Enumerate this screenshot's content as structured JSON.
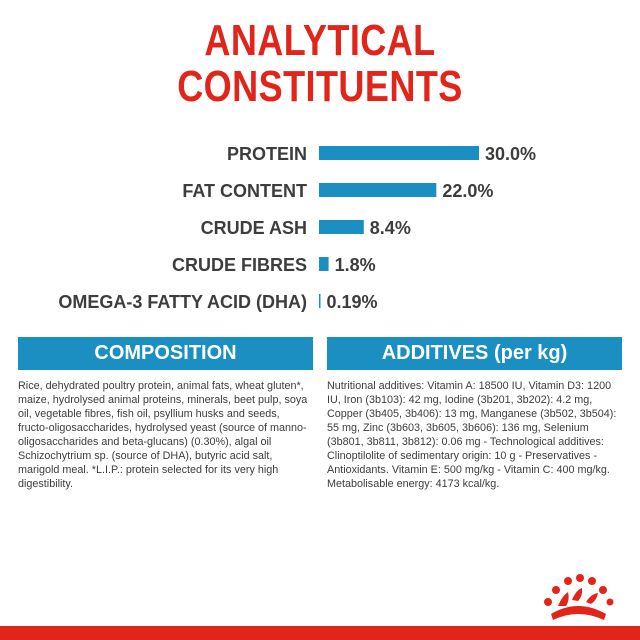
{
  "title_line1": "ANALYTICAL",
  "title_line2": "CONSTITUENTS",
  "chart_data": {
    "type": "bar",
    "orientation": "horizontal",
    "categories": [
      "PROTEIN",
      "FAT CONTENT",
      "CRUDE ASH",
      "CRUDE FIBRES",
      "OMEGA-3 FATTY ACID (DHA)"
    ],
    "values": [
      30.0,
      22.0,
      8.4,
      1.8,
      0.19
    ],
    "value_labels": [
      "30.0%",
      "22.0%",
      "8.4%",
      "1.8%",
      "0.19%"
    ],
    "bar_color": "#1b8fc1",
    "grid": false,
    "legend": "none"
  },
  "composition": {
    "heading": "COMPOSITION",
    "text": "Rice, dehydrated poultry protein, animal fats, wheat gluten*, maize, hydrolysed animal proteins, minerals, beet pulp, soya oil, vegetable fibres, fish oil, psyllium husks and seeds, fructo-oligosaccharides, hydrolysed yeast (source of manno-oligosaccharides and beta-glucans) (0.30%), algal oil Schizochytrium sp. (source of DHA), butyric acid salt, marigold meal. *L.I.P.: protein selected for its very high digestibility."
  },
  "additives": {
    "heading": "ADDITIVES (per kg)",
    "text": "Nutritional additives: Vitamin A: 18500 IU, Vitamin D3: 1200 IU, Iron (3b103): 42 mg, Iodine (3b201, 3b202): 4.2 mg, Copper (3b405, 3b406): 13 mg, Manganese (3b502, 3b504): 55 mg, Zinc (3b603, 3b605, 3b606): 136 mg, Selenium (3b801, 3b811, 3b812): 0.06 mg - Technological additives: Clinoptilolite of sedimentary origin: 10 g - Preservatives - Antioxidants. Vitamin E: 500 mg/kg - Vitamin C: 400 mg/kg. Metabolisable energy: 4173 kcal/kg."
  },
  "colors": {
    "accent_red": "#e1251b",
    "accent_blue": "#1b8fc1",
    "text": "#3d3d3d"
  },
  "logo_icon": "crown-icon"
}
